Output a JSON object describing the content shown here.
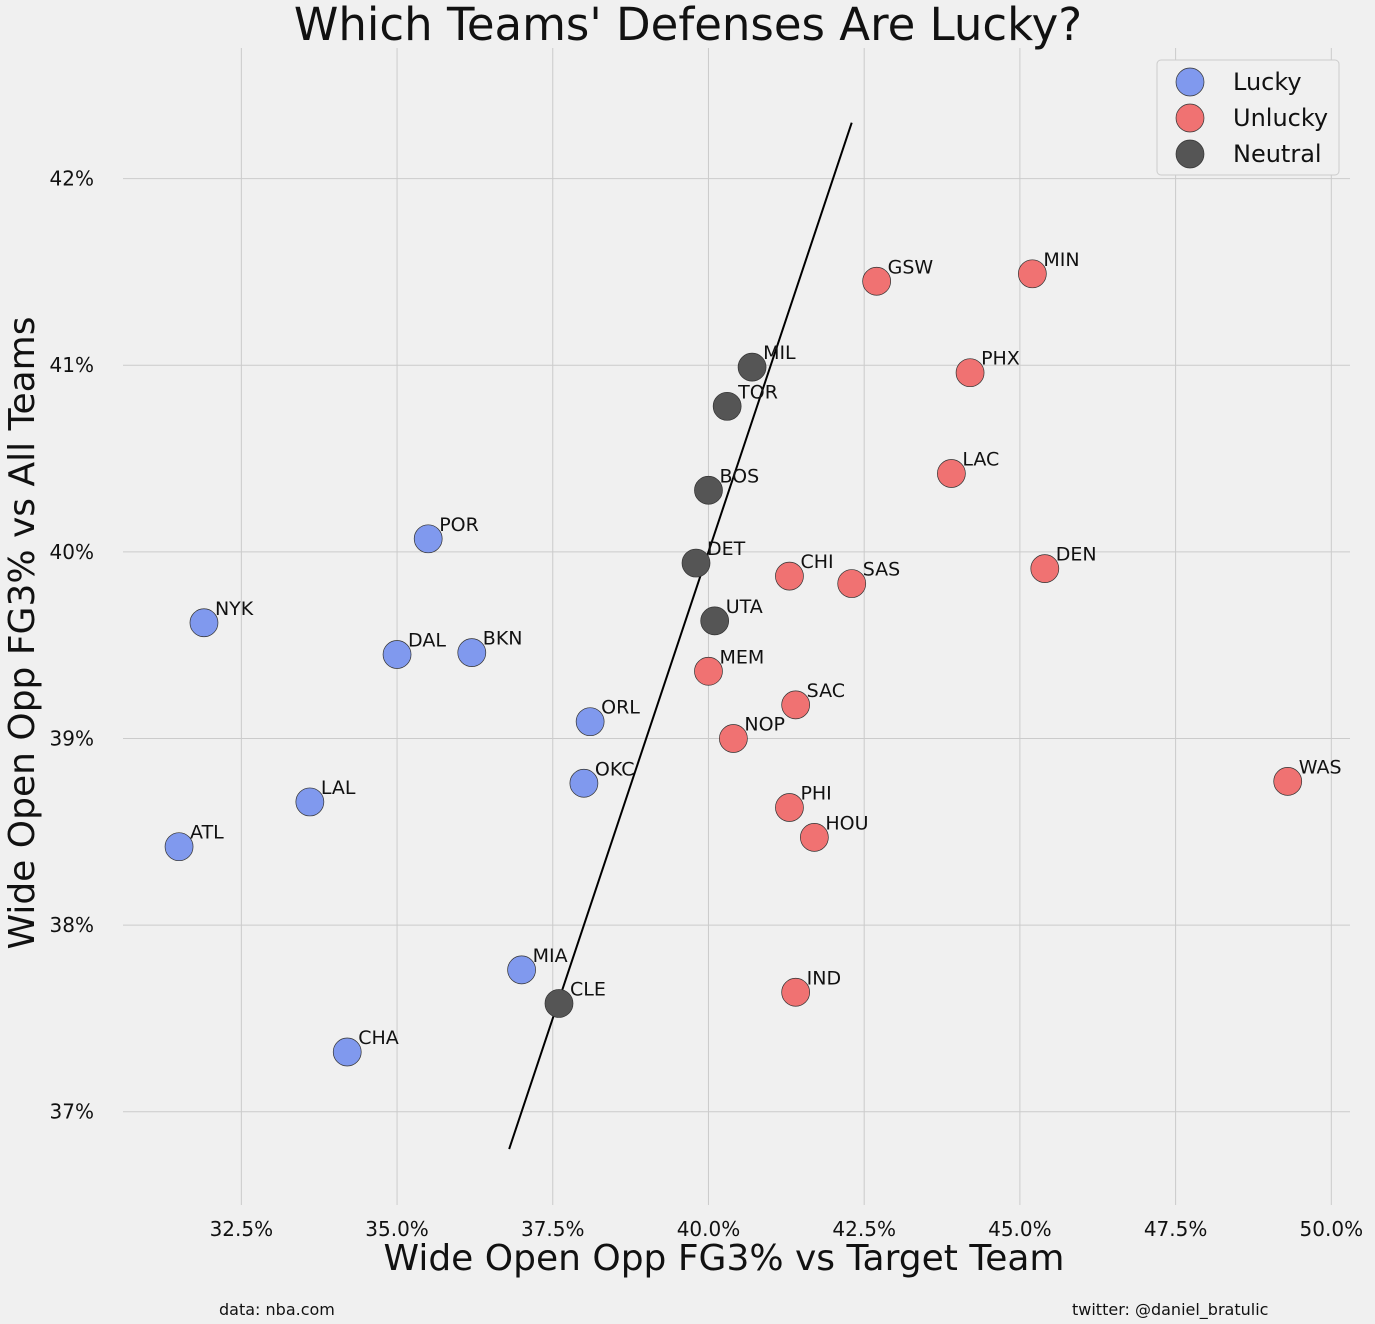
{
  "chart_data": {
    "type": "scatter",
    "title": "Which Teams' Defenses Are Lucky?",
    "xlabel": "Wide Open Opp FG3% vs Target Team",
    "ylabel": "Wide Open Opp FG3% vs All Teams",
    "xlim": [
      30.6,
      50.3
    ],
    "ylim": [
      36.5,
      42.7
    ],
    "x_ticks": [
      32.5,
      35.0,
      37.5,
      40.0,
      42.5,
      45.0,
      47.5,
      50.0
    ],
    "x_tick_labels": [
      "32.5%",
      "35.0%",
      "37.5%",
      "40.0%",
      "42.5%",
      "45.0%",
      "47.5%",
      "50.0%"
    ],
    "y_ticks": [
      37,
      38,
      39,
      40,
      41,
      42
    ],
    "y_tick_labels": [
      "37%",
      "38%",
      "39%",
      "40%",
      "41%",
      "42%"
    ],
    "grid": true,
    "legend_position": "top-right",
    "series": [
      {
        "name": "Lucky",
        "color": "#8099ee",
        "points": [
          {
            "label": "POR",
            "x": 35.5,
            "y": 40.07
          },
          {
            "label": "NYK",
            "x": 31.9,
            "y": 39.62
          },
          {
            "label": "DAL",
            "x": 35.0,
            "y": 39.45
          },
          {
            "label": "BKN",
            "x": 36.2,
            "y": 39.46
          },
          {
            "label": "ORL",
            "x": 38.1,
            "y": 39.09
          },
          {
            "label": "OKC",
            "x": 38.0,
            "y": 38.76
          },
          {
            "label": "LAL",
            "x": 33.6,
            "y": 38.66
          },
          {
            "label": "ATL",
            "x": 31.5,
            "y": 38.42
          },
          {
            "label": "MIA",
            "x": 37.0,
            "y": 37.76
          },
          {
            "label": "CHA",
            "x": 34.2,
            "y": 37.32
          }
        ]
      },
      {
        "name": "Unlucky",
        "color": "#f07272",
        "points": [
          {
            "label": "GSW",
            "x": 42.7,
            "y": 41.45
          },
          {
            "label": "MIN",
            "x": 45.2,
            "y": 41.49
          },
          {
            "label": "PHX",
            "x": 44.2,
            "y": 40.96
          },
          {
            "label": "LAC",
            "x": 43.9,
            "y": 40.42
          },
          {
            "label": "DEN",
            "x": 45.4,
            "y": 39.91
          },
          {
            "label": "CHI",
            "x": 41.3,
            "y": 39.87
          },
          {
            "label": "SAS",
            "x": 42.3,
            "y": 39.83
          },
          {
            "label": "MEM",
            "x": 40.0,
            "y": 39.36
          },
          {
            "label": "SAC",
            "x": 41.4,
            "y": 39.18
          },
          {
            "label": "NOP",
            "x": 40.4,
            "y": 39.0
          },
          {
            "label": "WAS",
            "x": 49.3,
            "y": 38.77
          },
          {
            "label": "PHI",
            "x": 41.3,
            "y": 38.63
          },
          {
            "label": "HOU",
            "x": 41.7,
            "y": 38.47
          },
          {
            "label": "IND",
            "x": 41.4,
            "y": 37.64
          }
        ]
      },
      {
        "name": "Neutral",
        "color": "#555555",
        "points": [
          {
            "label": "MIL",
            "x": 40.7,
            "y": 40.99
          },
          {
            "label": "TOR",
            "x": 40.3,
            "y": 40.78
          },
          {
            "label": "BOS",
            "x": 40.0,
            "y": 40.33
          },
          {
            "label": "DET",
            "x": 39.8,
            "y": 39.94
          },
          {
            "label": "UTA",
            "x": 40.1,
            "y": 39.63
          },
          {
            "label": "CLE",
            "x": 37.6,
            "y": 37.58
          }
        ]
      }
    ],
    "reference_line": {
      "x": [
        36.8,
        42.3
      ],
      "y": [
        36.8,
        42.3
      ],
      "color": "#000000"
    }
  },
  "footer": {
    "source": "data: nba.com",
    "credit": "twitter: @daniel_bratulic"
  }
}
